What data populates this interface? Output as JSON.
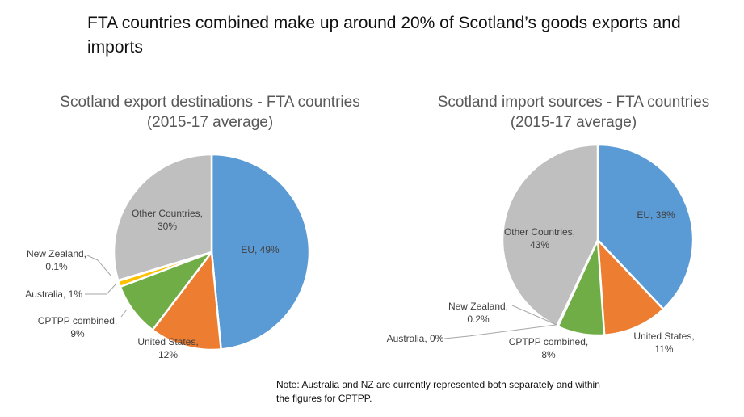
{
  "headline": "FTA countries combined make up around 20% of Scotland’s goods exports and imports",
  "note": "Note: Australia and NZ are currently represented both separately and within the figures for CPTPP.",
  "colors": {
    "eu": "#5b9bd5",
    "us": "#ed7d31",
    "cptpp": "#70ad47",
    "australia": "#ffc000",
    "new_zealand": "#4472c4",
    "other": "#bfbfbf"
  },
  "chart_data": [
    {
      "type": "pie",
      "title": "Scotland export destinations - FTA countries",
      "subtitle": "(2015-17 average)",
      "slices": [
        {
          "name": "EU",
          "value": 49,
          "label": "EU, 49%",
          "color_key": "eu"
        },
        {
          "name": "United States",
          "value": 12,
          "label": "United States, 12%",
          "color_key": "us"
        },
        {
          "name": "CPTPP combined",
          "value": 9,
          "label": "CPTPP combined, 9%",
          "color_key": "cptpp"
        },
        {
          "name": "Australia",
          "value": 1,
          "label": "Australia, 1%",
          "color_key": "australia"
        },
        {
          "name": "New Zealand",
          "value": 0.1,
          "label": "New Zealand, 0.1%",
          "color_key": "new_zealand"
        },
        {
          "name": "Other Countries",
          "value": 30,
          "label": "Other Countries, 30%",
          "color_key": "other"
        }
      ]
    },
    {
      "type": "pie",
      "title": "Scotland import sources - FTA countries",
      "subtitle": "(2015-17 average)",
      "slices": [
        {
          "name": "EU",
          "value": 38,
          "label": "EU, 38%",
          "color_key": "eu"
        },
        {
          "name": "United States",
          "value": 11,
          "label": "United States, 11%",
          "color_key": "us"
        },
        {
          "name": "CPTPP combined",
          "value": 8,
          "label": "CPTPP combined, 8%",
          "color_key": "cptpp"
        },
        {
          "name": "Australia",
          "value": 0,
          "label": "Australia, 0%",
          "color_key": "australia"
        },
        {
          "name": "New Zealand",
          "value": 0.2,
          "label": "New Zealand, 0.2%",
          "color_key": "new_zealand"
        },
        {
          "name": "Other Countries",
          "value": 43,
          "label": "Other Countries, 43%",
          "color_key": "other"
        }
      ]
    }
  ]
}
